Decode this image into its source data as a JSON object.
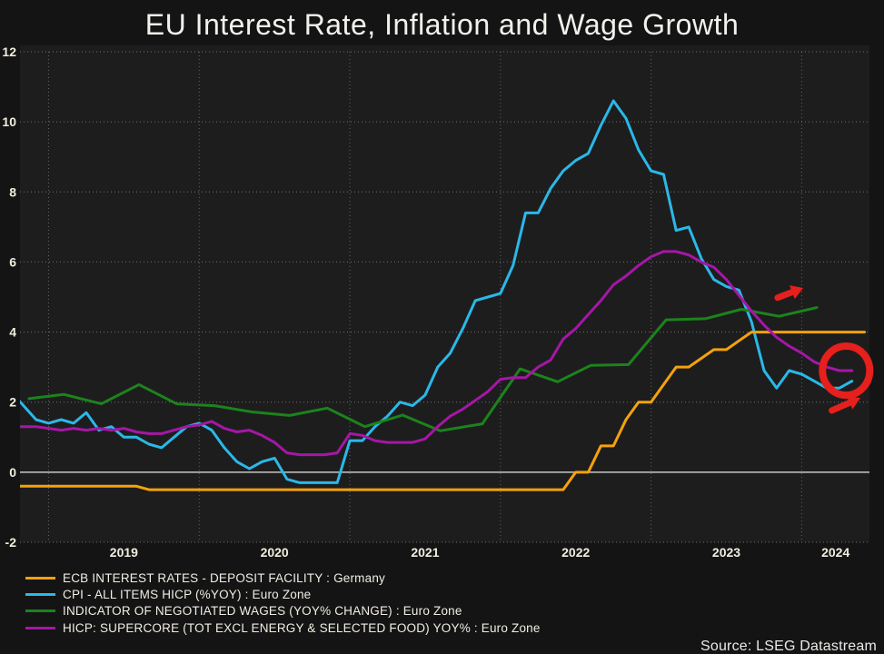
{
  "page": {
    "title": "EU Interest Rate, Inflation and Wage Growth",
    "source": "Source: LSEG Datastream"
  },
  "colors": {
    "background": "#141415",
    "plot_background": "#1D1D1E",
    "text": "#F1EDDE",
    "zero_line": "#C8C8C6",
    "grid": "#808080",
    "annotation_red": "#E5201D"
  },
  "chart_data": {
    "type": "line",
    "title": "EU Interest Rate, Inflation and Wage Growth",
    "x_ticks": [
      "2019",
      "2020",
      "2021",
      "2022",
      "2023",
      "2024"
    ],
    "y_ticks": [
      12,
      10,
      8,
      6,
      4,
      2,
      0,
      -2
    ],
    "x_range": [
      2018.81,
      2024.45
    ],
    "y_range": [
      -2,
      12
    ],
    "grid": "dotted",
    "legend_position": "bottom-left",
    "series": [
      {
        "name": "ECB INTEREST RATES - DEPOSIT FACILITY : Germany",
        "color": "#F5A20B",
        "freq": "monthly",
        "start_year": 2018,
        "start_month": 10,
        "z": 1,
        "values": [
          -0.4,
          -0.4,
          -0.4,
          -0.4,
          -0.4,
          -0.4,
          -0.4,
          -0.4,
          -0.4,
          -0.4,
          -0.4,
          -0.5,
          -0.5,
          -0.5,
          -0.5,
          -0.5,
          -0.5,
          -0.5,
          -0.5,
          -0.5,
          -0.5,
          -0.5,
          -0.5,
          -0.5,
          -0.5,
          -0.5,
          -0.5,
          -0.5,
          -0.5,
          -0.5,
          -0.5,
          -0.5,
          -0.5,
          -0.5,
          -0.5,
          -0.5,
          -0.5,
          -0.5,
          -0.5,
          -0.5,
          -0.5,
          -0.5,
          -0.5,
          -0.5,
          -0.5,
          0.0,
          0.0,
          0.75,
          0.75,
          1.5,
          2.0,
          2.0,
          2.5,
          3.0,
          3.0,
          3.25,
          3.5,
          3.5,
          3.75,
          4.0,
          4.0,
          4.0,
          4.0,
          4.0,
          4.0,
          4.0,
          4.0,
          4.0,
          4.0
        ]
      },
      {
        "name": "CPI - ALL ITEMS HICP (%YOY) : Euro Zone",
        "color": "#2BB8E8",
        "freq": "monthly",
        "start_year": 2018,
        "start_month": 10,
        "z": 0,
        "values": [
          2.3,
          1.9,
          1.5,
          1.4,
          1.5,
          1.4,
          1.7,
          1.2,
          1.3,
          1.0,
          1.0,
          0.8,
          0.7,
          1.0,
          1.3,
          1.4,
          1.2,
          0.7,
          0.3,
          0.1,
          0.3,
          0.4,
          -0.2,
          -0.3,
          -0.3,
          -0.3,
          -0.3,
          0.9,
          0.9,
          1.3,
          1.6,
          2.0,
          1.9,
          2.2,
          3.0,
          3.4,
          4.1,
          4.9,
          5.0,
          5.1,
          5.9,
          7.4,
          7.4,
          8.1,
          8.6,
          8.9,
          9.1,
          9.9,
          10.6,
          10.1,
          9.2,
          8.6,
          8.5,
          6.9,
          7.0,
          6.1,
          5.5,
          5.3,
          5.2,
          4.3,
          2.9,
          2.4,
          2.9,
          2.8,
          2.6,
          2.4,
          2.4,
          2.6
        ]
      },
      {
        "name": "INDICATOR OF NEGOTIATED WAGES (YOY% CHANGE) : Euro Zone",
        "color": "#1C831C",
        "freq": "quarterly_points",
        "z": 2,
        "points": [
          [
            2018.87,
            2.1
          ],
          [
            2019.1,
            2.22
          ],
          [
            2019.35,
            1.95
          ],
          [
            2019.6,
            2.5
          ],
          [
            2019.85,
            1.95
          ],
          [
            2020.1,
            1.9
          ],
          [
            2020.35,
            1.72
          ],
          [
            2020.6,
            1.62
          ],
          [
            2020.85,
            1.83
          ],
          [
            2021.1,
            1.3
          ],
          [
            2021.35,
            1.63
          ],
          [
            2021.6,
            1.18
          ],
          [
            2021.88,
            1.38
          ],
          [
            2022.13,
            2.95
          ],
          [
            2022.38,
            2.58
          ],
          [
            2022.6,
            3.05
          ],
          [
            2022.85,
            3.07
          ],
          [
            2023.1,
            4.35
          ],
          [
            2023.36,
            4.38
          ],
          [
            2023.6,
            4.65
          ],
          [
            2023.85,
            4.45
          ],
          [
            2024.1,
            4.7
          ]
        ]
      },
      {
        "name": "HICP: SUPERCORE (TOT EXCL ENERGY & SELECTED FOOD) YOY% : Euro Zone",
        "color": "#A517A5",
        "freq": "monthly",
        "start_year": 2018,
        "start_month": 10,
        "z": 3,
        "values": [
          1.3,
          1.3,
          1.3,
          1.25,
          1.2,
          1.25,
          1.2,
          1.25,
          1.2,
          1.25,
          1.15,
          1.1,
          1.1,
          1.2,
          1.3,
          1.35,
          1.45,
          1.25,
          1.15,
          1.2,
          1.05,
          0.85,
          0.55,
          0.5,
          0.5,
          0.5,
          0.55,
          1.1,
          1.05,
          0.9,
          0.85,
          0.85,
          0.85,
          0.95,
          1.3,
          1.6,
          1.8,
          2.05,
          2.3,
          2.65,
          2.7,
          2.7,
          3.0,
          3.2,
          3.8,
          4.1,
          4.5,
          4.9,
          5.35,
          5.6,
          5.9,
          6.15,
          6.3,
          6.3,
          6.2,
          6.0,
          5.85,
          5.5,
          5.05,
          4.6,
          4.2,
          3.85,
          3.6,
          3.4,
          3.15,
          3.0,
          2.9,
          2.9
        ]
      }
    ],
    "annotations": [
      {
        "kind": "arrow",
        "name": "up-right-arrow",
        "from_t": 2023.84,
        "from_v": 4.98,
        "to_t": 2024.01,
        "to_v": 5.26
      },
      {
        "kind": "circle",
        "name": "highlight-circle",
        "t": 2024.295,
        "v": 2.9,
        "radius_px": 26
      },
      {
        "kind": "arrow",
        "name": "lower-right-arrow",
        "from_t": 2024.2,
        "from_v": 1.76,
        "to_t": 2024.39,
        "to_v": 2.12
      }
    ]
  }
}
